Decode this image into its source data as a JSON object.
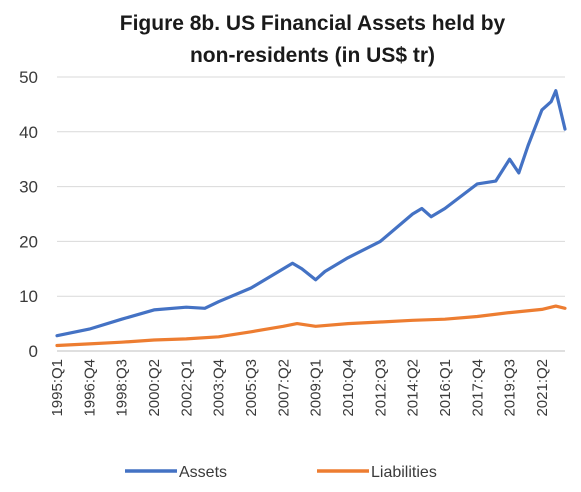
{
  "chart_data": {
    "type": "line",
    "title_line1": "Figure 8b. US Financial Assets held by",
    "title_line2": "non-residents (in US$ tr)",
    "xlabel": "",
    "ylabel": "",
    "ylim": [
      0,
      50
    ],
    "yticks": [
      0,
      10,
      20,
      30,
      40,
      50
    ],
    "grid": true,
    "legend_position": "bottom",
    "x_tick_labels": [
      "1995:Q1",
      "1996:Q4",
      "1998:Q3",
      "2000:Q2",
      "2002:Q1",
      "2003:Q4",
      "2005:Q3",
      "2007:Q2",
      "2009:Q1",
      "2010:Q4",
      "2012:Q3",
      "2014:Q2",
      "2016:Q1",
      "2017:Q4",
      "2019:Q3",
      "2021:Q2"
    ],
    "x_start": "1995:Q1",
    "x_end": "2022:Q3",
    "series": [
      {
        "name": "Assets",
        "color": "#4472C4",
        "x": [
          "1995:Q1",
          "1996:Q4",
          "1998:Q3",
          "2000:Q2",
          "2002:Q1",
          "2003:Q1",
          "2003:Q4",
          "2005:Q3",
          "2007:Q2",
          "2007:Q4",
          "2008:Q2",
          "2009:Q1",
          "2009:Q3",
          "2010:Q4",
          "2012:Q3",
          "2014:Q2",
          "2014:Q4",
          "2015:Q2",
          "2016:Q1",
          "2017:Q4",
          "2018:Q4",
          "2019:Q3",
          "2020:Q1",
          "2020:Q3",
          "2021:Q2",
          "2021:Q4",
          "2022:Q1",
          "2022:Q3"
        ],
        "values": [
          2.8,
          4.0,
          5.8,
          7.5,
          8.0,
          7.8,
          9.0,
          11.5,
          15.0,
          16.0,
          15.0,
          13.0,
          14.5,
          17.0,
          20.0,
          25.0,
          26.0,
          24.5,
          26.0,
          30.5,
          31.0,
          35.0,
          32.5,
          37.5,
          44.0,
          45.5,
          47.5,
          40.5
        ]
      },
      {
        "name": "Liabilities",
        "color": "#ED7D31",
        "x": [
          "1995:Q1",
          "1996:Q4",
          "1998:Q3",
          "2000:Q2",
          "2002:Q1",
          "2003:Q4",
          "2005:Q3",
          "2007:Q2",
          "2008:Q1",
          "2009:Q1",
          "2010:Q4",
          "2012:Q3",
          "2014:Q2",
          "2016:Q1",
          "2017:Q4",
          "2019:Q3",
          "2021:Q2",
          "2022:Q1",
          "2022:Q3"
        ],
        "values": [
          1.0,
          1.3,
          1.6,
          2.0,
          2.2,
          2.6,
          3.5,
          4.5,
          5.0,
          4.5,
          5.0,
          5.3,
          5.6,
          5.8,
          6.3,
          7.0,
          7.6,
          8.2,
          7.8
        ]
      }
    ]
  }
}
